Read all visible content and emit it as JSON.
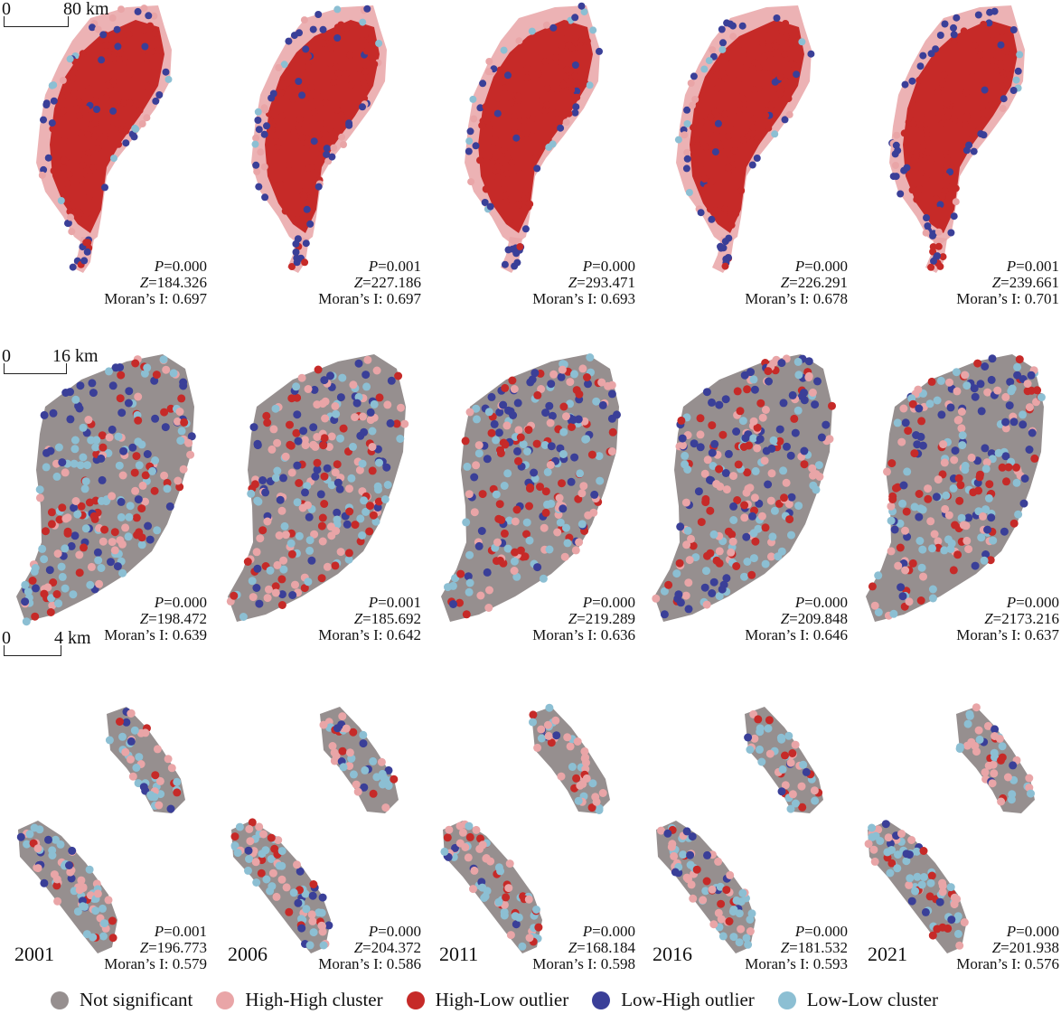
{
  "colors": {
    "not_significant": "#968f8f",
    "high_high": "#e9a5a7",
    "high_low": "#c62a28",
    "low_high": "#3a3f98",
    "low_low": "#8cbfd3"
  },
  "scale_bars": [
    {
      "zero": "0",
      "label": "80 km"
    },
    {
      "zero": "0",
      "label": "16 km"
    },
    {
      "zero": "0",
      "label": "4 km"
    }
  ],
  "years": [
    "2001",
    "2006",
    "2011",
    "2016",
    "2021"
  ],
  "rows": [
    {
      "panels": [
        {
          "p": "=0.000",
          "z": "=184.326",
          "moran": "Moran’s I: 0.697"
        },
        {
          "p": "=0.001",
          "z": "=227.186",
          "moran": "Moran’s I: 0.697"
        },
        {
          "p": "=0.000",
          "z": "=293.471",
          "moran": "Moran’s I: 0.693"
        },
        {
          "p": "=0.000",
          "z": "=226.291",
          "moran": "Moran’s I: 0.678"
        },
        {
          "p": "=0.001",
          "z": "=239.661",
          "moran": "Moran’s I: 0.701"
        }
      ]
    },
    {
      "panels": [
        {
          "p": "=0.000",
          "z": "=198.472",
          "moran": "Moran’s I: 0.639"
        },
        {
          "p": "=0.001",
          "z": "=185.692",
          "moran": "Moran’s I: 0.642"
        },
        {
          "p": "=0.000",
          "z": "=219.289",
          "moran": "Moran’s I: 0.636"
        },
        {
          "p": "=0.000",
          "z": "=209.848",
          "moran": "Moran’s I: 0.646"
        },
        {
          "p": "=0.000",
          "z": "=2173.216",
          "moran": "Moran’s I: 0.637"
        }
      ]
    },
    {
      "panels": [
        {
          "p": "=0.001",
          "z": "=196.773",
          "moran": "Moran’s I: 0.579"
        },
        {
          "p": "=0.000",
          "z": "=204.372",
          "moran": "Moran’s I: 0.586"
        },
        {
          "p": "=0.000",
          "z": "=168.184",
          "moran": "Moran’s I: 0.598"
        },
        {
          "p": "=0.000",
          "z": "=181.532",
          "moran": "Moran’s I: 0.593"
        },
        {
          "p": "=0.000",
          "z": "=201.938",
          "moran": "Moran’s I: 0.576"
        }
      ]
    }
  ],
  "stat_labels": {
    "p": "P",
    "z": "Z"
  },
  "legend": [
    {
      "label": "Not significant",
      "color_key": "not_significant"
    },
    {
      "label": "High-High cluster",
      "color_key": "high_high"
    },
    {
      "label": "High-Low outlier",
      "color_key": "high_low"
    },
    {
      "label": "Low-High outlier",
      "color_key": "low_high"
    },
    {
      "label": "Low-Low cluster",
      "color_key": "low_low"
    }
  ]
}
